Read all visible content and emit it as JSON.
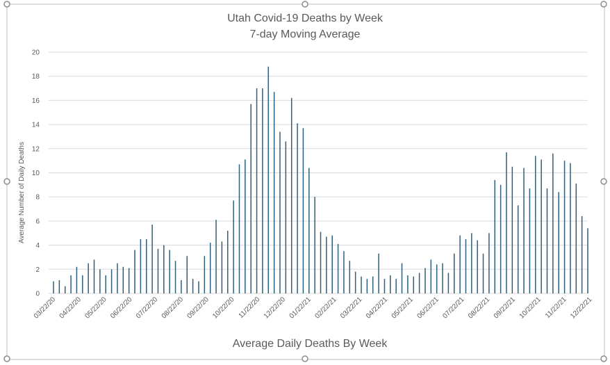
{
  "chart_data": {
    "type": "bar",
    "title": "Utah Covid-19 Deaths by Week",
    "subtitle": "7-day Moving Average",
    "xlabel": "Average Daily Deaths By Week",
    "ylabel": "Average Number of Daily Deaths",
    "ylim": [
      0,
      20
    ],
    "yticks": [
      0,
      2,
      4,
      6,
      8,
      10,
      12,
      14,
      16,
      18,
      20
    ],
    "grid": true,
    "legend": "none",
    "bar_color": "#2e5f7c",
    "tick_labels": [
      "03/22/20",
      "04/22/20",
      "05/22/20",
      "06/22/20",
      "07/22/20",
      "08/22/20",
      "09/22/20",
      "10/22/20",
      "11/22/20",
      "12/22/20",
      "01/22/21",
      "02/22/21",
      "03/22/21",
      "04/22/21",
      "05/22/21",
      "06/22/21",
      "07/22/21",
      "08/22/21",
      "09/22/21",
      "10/22/21",
      "11/22/21",
      "12/22/21"
    ],
    "values": [
      1.0,
      1.1,
      0.6,
      1.5,
      2.2,
      1.5,
      2.5,
      2.8,
      2.0,
      1.5,
      2.0,
      2.5,
      2.2,
      2.1,
      3.6,
      4.5,
      4.5,
      5.7,
      3.7,
      4.0,
      3.6,
      2.7,
      1.1,
      3.1,
      1.2,
      1.0,
      3.1,
      4.2,
      6.1,
      4.3,
      5.2,
      7.7,
      10.7,
      11.1,
      15.7,
      17.0,
      17.0,
      18.8,
      16.7,
      13.4,
      12.6,
      16.2,
      14.1,
      13.7,
      10.4,
      8.0,
      5.1,
      4.7,
      4.8,
      4.1,
      3.5,
      2.7,
      1.8,
      1.4,
      1.2,
      1.4,
      3.3,
      1.2,
      1.5,
      1.2,
      2.5,
      1.5,
      1.4,
      1.7,
      2.1,
      2.8,
      2.4,
      2.5,
      1.7,
      3.3,
      4.8,
      4.5,
      5.0,
      4.4,
      3.3,
      5.0,
      9.4,
      9.0,
      11.7,
      10.5,
      7.3,
      10.4,
      8.7,
      11.4,
      11.1,
      8.7,
      11.6,
      8.4,
      11.0,
      10.8,
      9.1,
      6.4,
      5.4
    ]
  }
}
